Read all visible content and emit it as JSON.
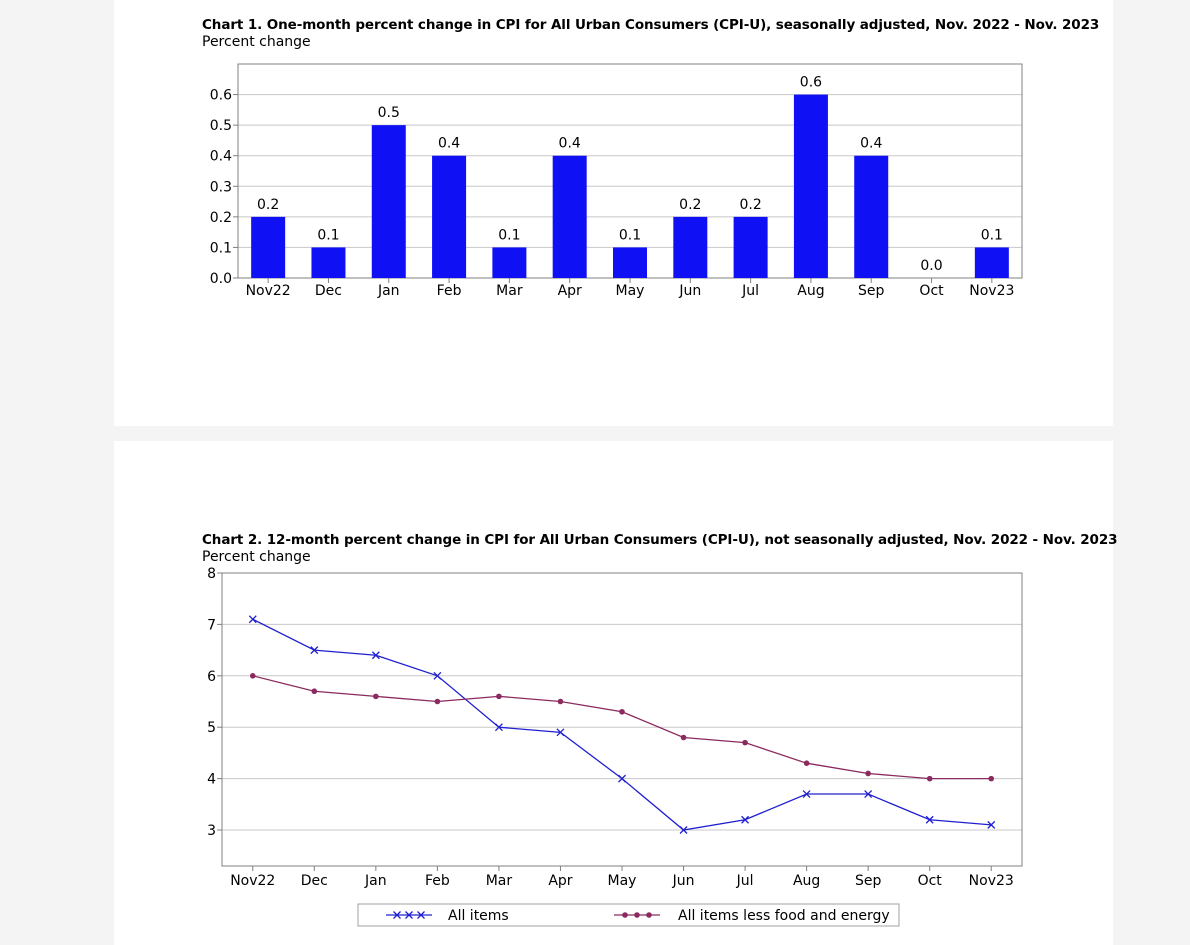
{
  "charts": [
    {
      "title": "Chart 1. One-month percent change in CPI for All Urban Consumers (CPI-U), seasonally adjusted, Nov. 2022 - Nov. 2023",
      "subtitle": "Percent change"
    },
    {
      "title": "Chart 2. 12-month percent change in CPI for All Urban Consumers (CPI-U), not seasonally adjusted, Nov. 2022 - Nov. 2023",
      "subtitle": "Percent change"
    }
  ],
  "chart_data": [
    {
      "type": "bar",
      "title": "Chart 1. One-month percent change in CPI for All Urban Consumers (CPI-U), seasonally adjusted, Nov. 2022 - Nov. 2023",
      "ylabel": "Percent change",
      "categories": [
        "Nov22",
        "Dec",
        "Jan",
        "Feb",
        "Mar",
        "Apr",
        "May",
        "Jun",
        "Jul",
        "Aug",
        "Sep",
        "Oct",
        "Nov23"
      ],
      "values": [
        0.2,
        0.1,
        0.5,
        0.4,
        0.1,
        0.4,
        0.1,
        0.2,
        0.2,
        0.6,
        0.4,
        0.0,
        0.1
      ],
      "data_labels": [
        "0.2",
        "0.1",
        "0.5",
        "0.4",
        "0.1",
        "0.4",
        "0.1",
        "0.2",
        "0.2",
        "0.6",
        "0.4",
        "0.0",
        "0.1"
      ],
      "yticks": [
        "0.0",
        "0.1",
        "0.2",
        "0.3",
        "0.4",
        "0.5",
        "0.6"
      ],
      "ylim": [
        0,
        0.7
      ],
      "grid": true,
      "bar_color": "#1010f5"
    },
    {
      "type": "line",
      "title": "Chart 2. 12-month percent change in CPI for All Urban Consumers (CPI-U), not seasonally adjusted, Nov. 2022 - Nov. 2023",
      "ylabel": "Percent change",
      "categories": [
        "Nov22",
        "Dec",
        "Jan",
        "Feb",
        "Mar",
        "Apr",
        "May",
        "Jun",
        "Jul",
        "Aug",
        "Sep",
        "Oct",
        "Nov23"
      ],
      "series": [
        {
          "name": "All items",
          "values": [
            7.1,
            6.5,
            6.4,
            6.0,
            5.0,
            4.9,
            4.0,
            3.0,
            3.2,
            3.7,
            3.7,
            3.2,
            3.1
          ],
          "color": "#2020d0",
          "marker": "x"
        },
        {
          "name": "All items less food and energy",
          "values": [
            6.0,
            5.7,
            5.6,
            5.5,
            5.6,
            5.5,
            5.3,
            4.8,
            4.7,
            4.3,
            4.1,
            4.0,
            4.0
          ],
          "color": "#8b2a5e",
          "marker": "dot"
        }
      ],
      "yticks": [
        "3",
        "4",
        "5",
        "6",
        "7",
        "8"
      ],
      "ylim": [
        2.3,
        8
      ],
      "grid": true,
      "legend_position": "bottom"
    }
  ]
}
